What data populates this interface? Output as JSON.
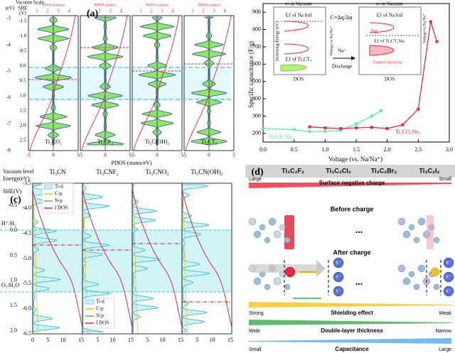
{
  "panel_a": {
    "label": "(a)",
    "scale_title": "Vacuum Scale",
    "ev_unit": "(eV)",
    "she_title": "SHE",
    "she_unit": "(V)",
    "ev_ticks": [
      "-3",
      "-4",
      "-5",
      "-6",
      "-7",
      "-8"
    ],
    "she_ticks": [
      "-1.5",
      "-1.0",
      "-0.5",
      "0.0",
      "0.5",
      "1.0",
      "1.5",
      "2.0",
      "2.5"
    ],
    "top_axis_title": "PDOS (states)",
    "top_ticks": [
      "1",
      "2",
      "3",
      "4"
    ],
    "bottom_ticks": [
      "-5",
      "0",
      "5"
    ],
    "x_label": "PDOS (states/eV)",
    "panels": [
      "Ti₂CO₂",
      "Ti₂CF₂",
      "Ti₂C(OH)₂",
      "Ti₂CT₂"
    ]
  },
  "chart_data": {
    "type": "line",
    "label": "(b)",
    "x_label": "Voltage (vs. Na/Na⁺)",
    "y_label": "Specific capacitance (F/g)",
    "xlim": [
      0,
      3
    ],
    "xticks": [
      {
        "value": 0,
        "label": "0.0"
      },
      {
        "value": 0.5,
        "label": "0.5"
      },
      {
        "value": 1,
        "label": "1.0"
      },
      {
        "value": 1.5,
        "label": "1.5"
      },
      {
        "value": 2,
        "label": "2.0"
      },
      {
        "value": 2.5,
        "label": "2.5"
      },
      {
        "value": 3,
        "label": "3.0"
      }
    ],
    "ylim": [
      150,
      950
    ],
    "yticks": [
      200,
      300,
      400,
      500,
      600,
      700,
      800,
      900
    ],
    "series": [
      {
        "name": "Ti₂CF₂Naₓ",
        "color": "#5fe6b0",
        "x": [
          0,
          0.5,
          0.75,
          1,
          1.25,
          1.5,
          1.75,
          1.9
        ],
        "values": [
          228,
          222,
          210,
          212,
          218,
          255,
          300,
          330
        ]
      },
      {
        "name": "Ti₂CO₂Naₓ",
        "color": "#e8283c",
        "x": [
          0.75,
          1,
          1.25,
          1.5,
          1.75,
          2,
          2.25,
          2.5,
          2.7,
          2.8
        ],
        "values": [
          238,
          232,
          228,
          232,
          235,
          228,
          250,
          340,
          845,
          730
        ]
      }
    ],
    "inset": {
      "vacuum": "e- in Vacuum",
      "na_foil": "Eƒ of Na foil",
      "energy_axis": "Increasing Energy (eV)",
      "ef_left": "Eƒ of Ti₃CT₂",
      "ef_right": "Eƒ of Ti₃CT₂Naₓ",
      "voltage": "Voltage vs Na/Na⁺",
      "formula": "C=Δq/Δφ",
      "dphi": "Δφ",
      "dq": "Δq",
      "ion": "Na⁺",
      "discharge": "Discharge",
      "dos": "DOS",
      "gained": "Gained electrons"
    }
  },
  "panel_c": {
    "label": "(c)",
    "vacuum": "Vacuum level",
    "energy": "Energy(eV)",
    "she": "SHE(V)",
    "h_level": "H⁺/H₂",
    "o_level": "O₂/H₂O",
    "energy_ticks": [
      "-3.5",
      "-4.0",
      "-4.5",
      "-5.0",
      "-5.5",
      "-6.0",
      "-6.5"
    ],
    "she_ticks": [
      "-0.5",
      "0.0",
      "0.5",
      "1.0",
      "1.5",
      "2.0"
    ],
    "x_ticks": [
      "0",
      "5",
      "10",
      "15"
    ],
    "panels": [
      "Ti₃CN",
      "Ti₃CNF₂",
      "Ti₃CNO₂",
      "Ti₃CN(OH)₂"
    ],
    "legend": [
      "Ti-d",
      "C-p",
      "N-p",
      "I DOS"
    ]
  },
  "panel_d": {
    "label": "(d)",
    "columns": [
      "Ti₃C₂F₂",
      "Ti₃C₂Cl₂",
      "Ti₃C₂Br₂",
      "Ti₃C₂I₂"
    ],
    "rows": [
      {
        "left": "Large",
        "title": "Surface negative charge",
        "right": "Small"
      },
      {
        "left": "Strong",
        "title": "Shielding effect",
        "right": "Weak"
      },
      {
        "left": "Wide",
        "title": "Double-layer thickness",
        "right": "Narrow"
      },
      {
        "left": "Small",
        "title": "Capacitance",
        "right": "Large"
      }
    ],
    "before": "Before charge",
    "after": "After charge",
    "ellipsis": "...",
    "ion": "K⁺"
  }
}
